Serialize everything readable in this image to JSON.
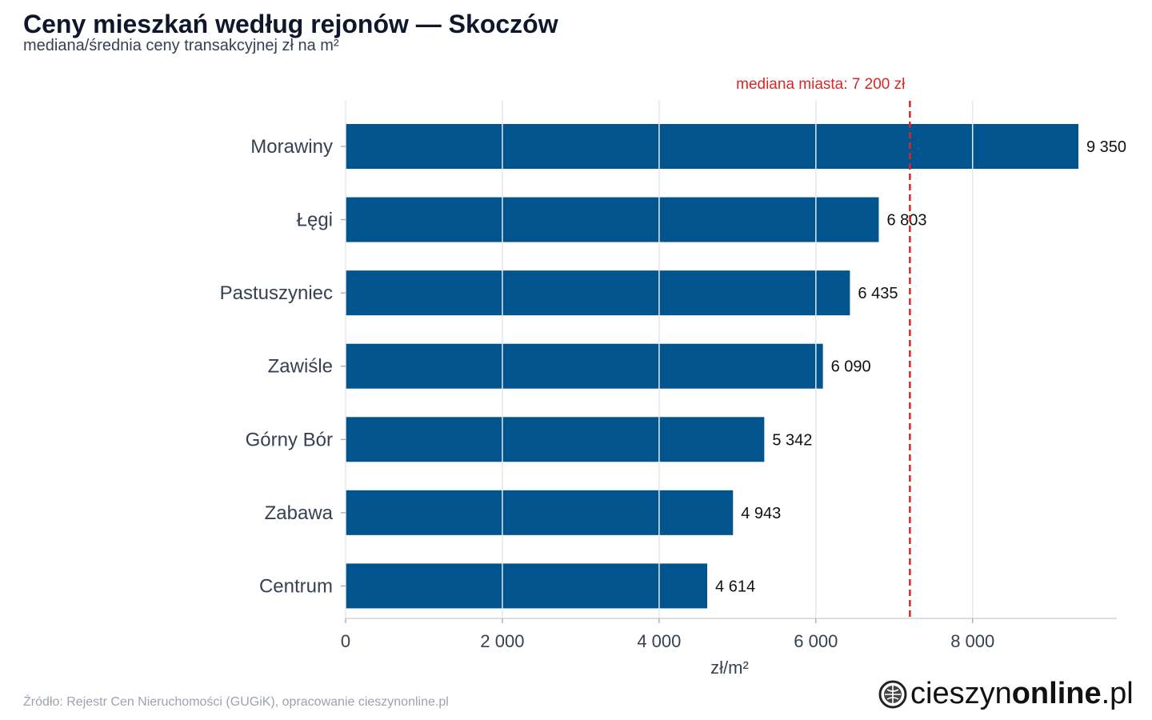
{
  "title": "Ceny mieszkań według rejonów — Skoczów",
  "subtitle": "mediana/średnia ceny transakcyjnej zł na m²",
  "source": "Źródło: Rejestr Cen Nieruchomości (GUGiK), opracowanie cieszynonline.pl",
  "logo": {
    "regular_a": "cieszyn",
    "bold": "online",
    "regular_b": ".pl",
    "icon": "globe-icon"
  },
  "colors": {
    "bar": "#02548e",
    "median_line": "#dc2626",
    "grid": "#e5e7eb",
    "axis_text": "#374151"
  },
  "chart_data": {
    "type": "bar",
    "orientation": "horizontal",
    "categories": [
      "Morawiny",
      "Łęgi",
      "Pastuszyniec",
      "Zawiśle",
      "Górny Bór",
      "Zabawa",
      "Centrum"
    ],
    "values": [
      9350,
      6803,
      6435,
      6090,
      5342,
      4943,
      4614
    ],
    "value_labels": [
      "9 350",
      "6 803",
      "6 435",
      "6 090",
      "5 342",
      "4 943",
      "4 614"
    ],
    "xlabel": "zł/m²",
    "ylabel": "",
    "xlim": [
      0,
      9840
    ],
    "xticks": [
      0,
      2000,
      4000,
      6000,
      8000
    ],
    "xtick_labels": [
      "0",
      "2 000",
      "4 000",
      "6 000",
      "8 000"
    ],
    "grid": true,
    "reference_line": {
      "value": 7200,
      "label": "mediana miasta: 7 200 zł",
      "style": "dashed"
    }
  }
}
